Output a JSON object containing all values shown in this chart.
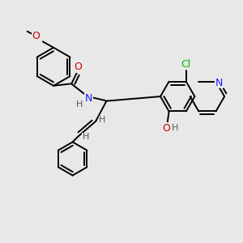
{
  "background_color": "#e8e8e8",
  "atom_colors": {
    "C": "#000000",
    "N": "#1a1aff",
    "O": "#cc0000",
    "Cl": "#00bb00",
    "H": "#555555"
  },
  "bond_color": "#000000",
  "bond_lw": 1.4
}
